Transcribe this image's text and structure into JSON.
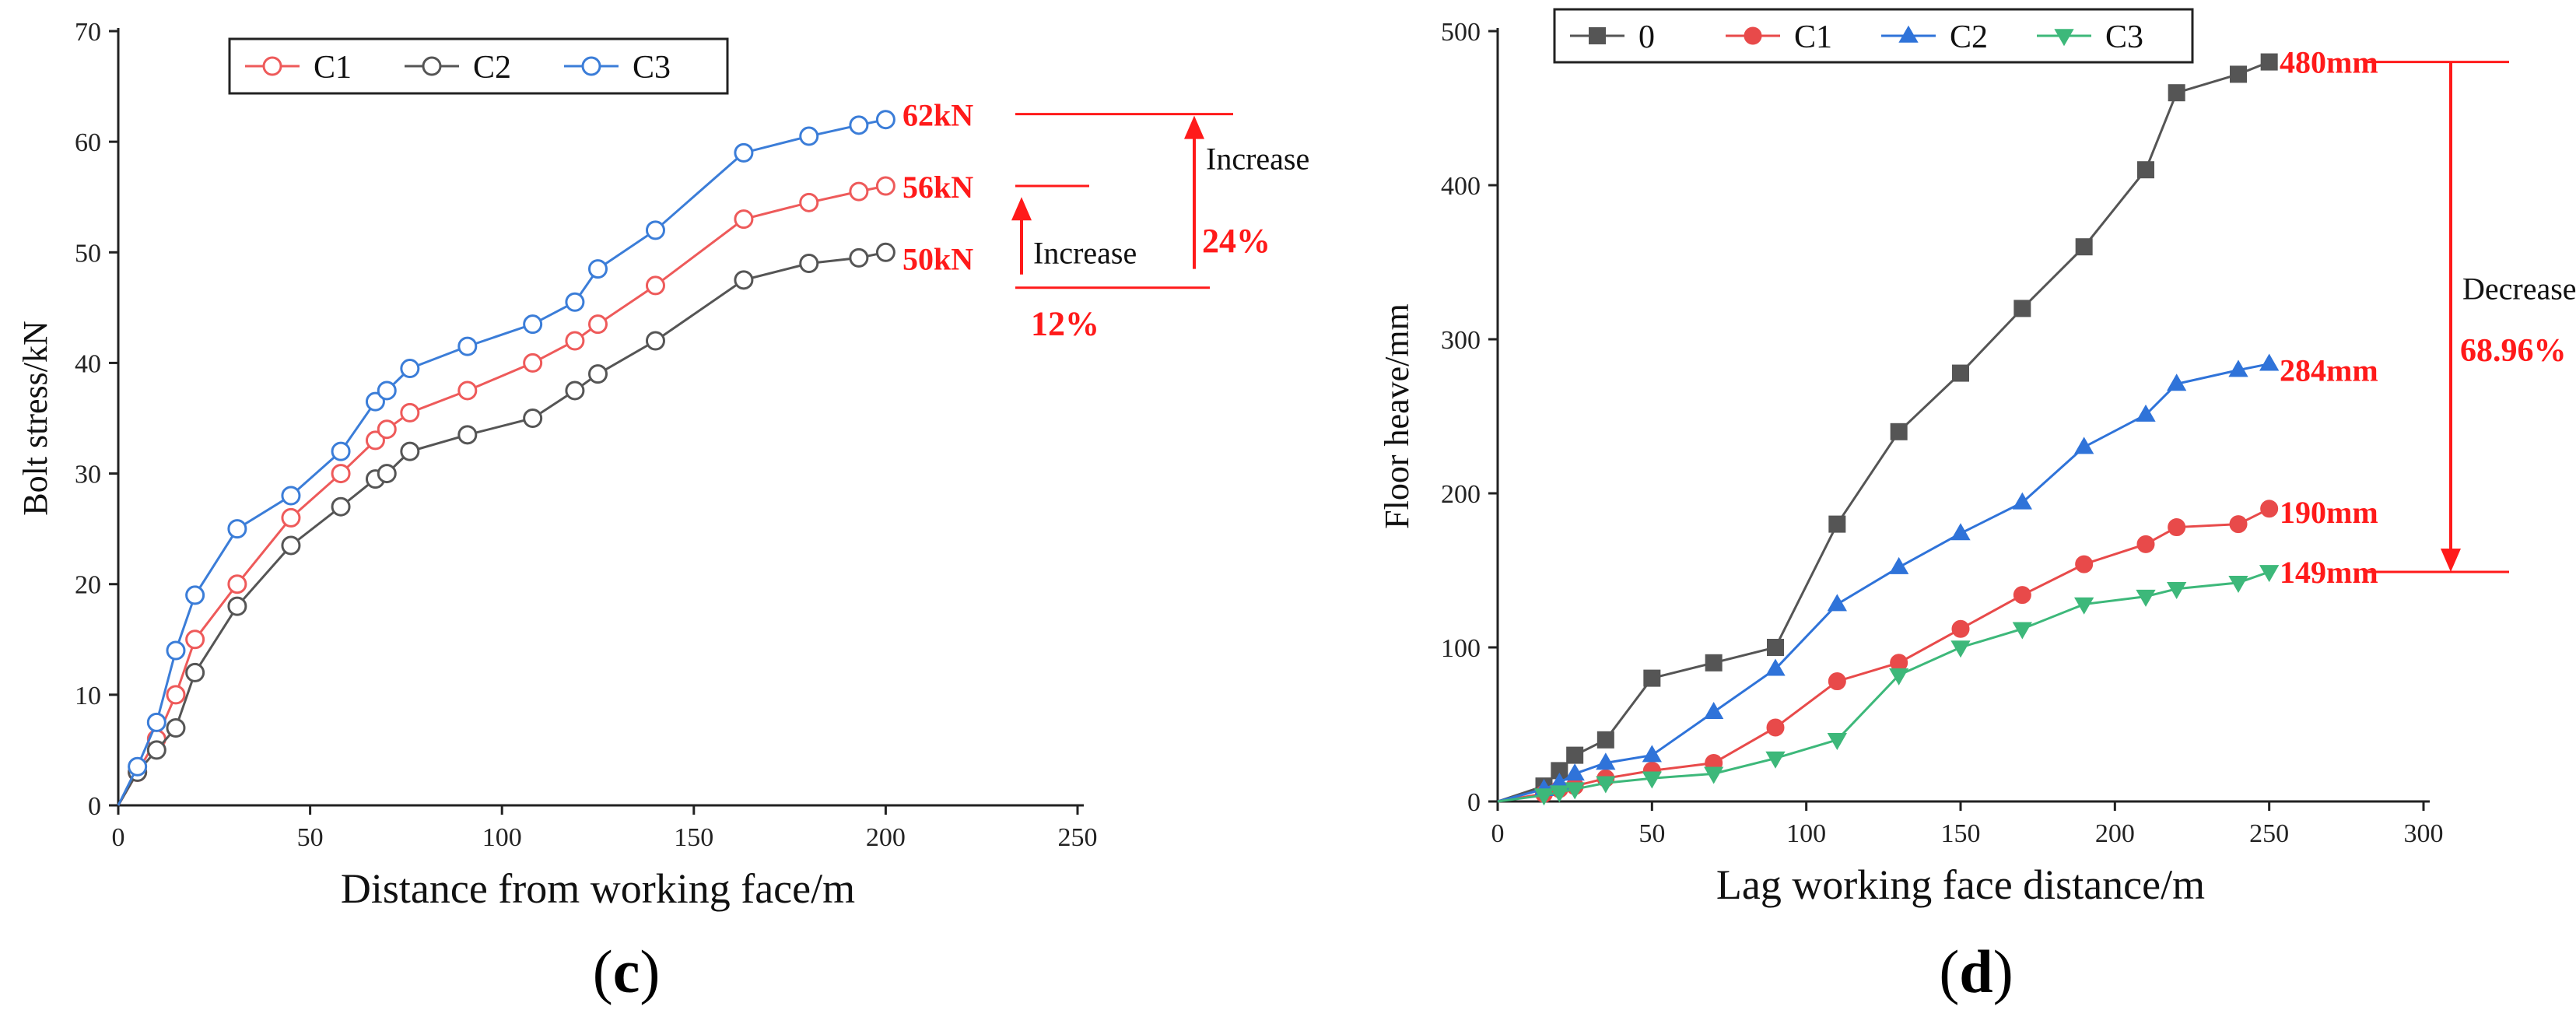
{
  "chart_data": [
    {
      "type": "line",
      "panel_label": "c",
      "xlabel": "Distance from working face/m",
      "ylabel": "Bolt stress/kN",
      "xlim": [
        0,
        250
      ],
      "ylim": [
        0,
        70
      ],
      "xticks": [
        0,
        50,
        100,
        150,
        200,
        250
      ],
      "yticks": [
        0,
        10,
        20,
        30,
        40,
        50,
        60,
        70
      ],
      "legend_position": "top",
      "series": [
        {
          "name": "C1",
          "color": "#ee5a5a",
          "marker": "circle-open",
          "x": [
            0,
            5,
            10,
            15,
            20,
            31,
            45,
            58,
            67,
            70,
            76,
            91,
            108,
            119,
            125,
            140,
            163,
            180,
            193,
            200
          ],
          "y": [
            0,
            3,
            6,
            10,
            15,
            20,
            26,
            30,
            33,
            34,
            35.5,
            37.5,
            40,
            42,
            43.5,
            47,
            53,
            54.5,
            55.5,
            56
          ]
        },
        {
          "name": "C2",
          "color": "#555555",
          "marker": "circle-open",
          "x": [
            0,
            5,
            10,
            15,
            20,
            31,
            45,
            58,
            67,
            70,
            76,
            91,
            108,
            119,
            125,
            140,
            163,
            180,
            193,
            200
          ],
          "y": [
            0,
            3,
            5,
            7,
            12,
            18,
            23.5,
            27,
            29.5,
            30,
            32,
            33.5,
            35,
            37.5,
            39,
            42,
            47.5,
            49,
            49.5,
            50
          ]
        },
        {
          "name": "C3",
          "color": "#3b7dd8",
          "marker": "circle-open",
          "x": [
            0,
            5,
            10,
            15,
            20,
            31,
            45,
            58,
            67,
            70,
            76,
            91,
            108,
            119,
            125,
            140,
            163,
            180,
            193,
            200
          ],
          "y": [
            0,
            3.5,
            7.5,
            14,
            19,
            25,
            28,
            32,
            36.5,
            37.5,
            39.5,
            41.5,
            43.5,
            45.5,
            48.5,
            52,
            59,
            60.5,
            61.5,
            62
          ]
        }
      ],
      "annotations": {
        "values": [
          "62kN",
          "56kN",
          "50kN"
        ],
        "increase_labels": [
          "Increase",
          "Increase"
        ],
        "percents": [
          "24%",
          "12%"
        ]
      }
    },
    {
      "type": "line",
      "panel_label": "d",
      "xlabel": "Lag working face distance/m",
      "ylabel": "Floor heave/mm",
      "xlim": [
        0,
        300
      ],
      "ylim": [
        0,
        500
      ],
      "xticks": [
        0,
        50,
        100,
        150,
        200,
        250,
        300
      ],
      "yticks": [
        0,
        100,
        200,
        300,
        400,
        500
      ],
      "legend_position": "top",
      "series": [
        {
          "name": "0",
          "color": "#555555",
          "marker": "square",
          "x": [
            0,
            15,
            20,
            25,
            35,
            50,
            70,
            90,
            110,
            130,
            150,
            170,
            190,
            210,
            220,
            240,
            250
          ],
          "y": [
            0,
            10,
            20,
            30,
            40,
            80,
            90,
            100,
            180,
            240,
            278,
            320,
            360,
            410,
            460,
            472,
            480
          ]
        },
        {
          "name": "C1",
          "color": "#e84a4a",
          "marker": "circle",
          "x": [
            0,
            15,
            20,
            25,
            35,
            50,
            70,
            90,
            110,
            130,
            150,
            170,
            190,
            210,
            220,
            240,
            250
          ],
          "y": [
            0,
            5,
            8,
            10,
            15,
            20,
            25,
            48,
            78,
            90,
            112,
            134,
            154,
            167,
            178,
            180,
            190
          ]
        },
        {
          "name": "C2",
          "color": "#2f73d9",
          "marker": "triangle-up",
          "x": [
            0,
            15,
            20,
            25,
            35,
            50,
            70,
            90,
            110,
            130,
            150,
            170,
            190,
            210,
            220,
            240,
            250
          ],
          "y": [
            0,
            8,
            12,
            18,
            25,
            30,
            58,
            86,
            128,
            152,
            174,
            194,
            230,
            251,
            271,
            280,
            284
          ]
        },
        {
          "name": "C3",
          "color": "#3db87a",
          "marker": "triangle-down",
          "x": [
            0,
            15,
            20,
            25,
            35,
            50,
            70,
            90,
            110,
            130,
            150,
            170,
            190,
            210,
            220,
            240,
            250
          ],
          "y": [
            0,
            4,
            6,
            8,
            12,
            15,
            18,
            28,
            40,
            82,
            100,
            112,
            128,
            133,
            138,
            142,
            149
          ]
        }
      ],
      "annotations": {
        "values": [
          "480mm",
          "284mm",
          "190mm",
          "149mm"
        ],
        "decrease_label": "Decrease",
        "percent": "68.96%"
      }
    }
  ],
  "captions": {
    "c_prefix": "(",
    "c": "c",
    "c_suffix": ")",
    "d_prefix": "(",
    "d": "d",
    "d_suffix": ")"
  }
}
